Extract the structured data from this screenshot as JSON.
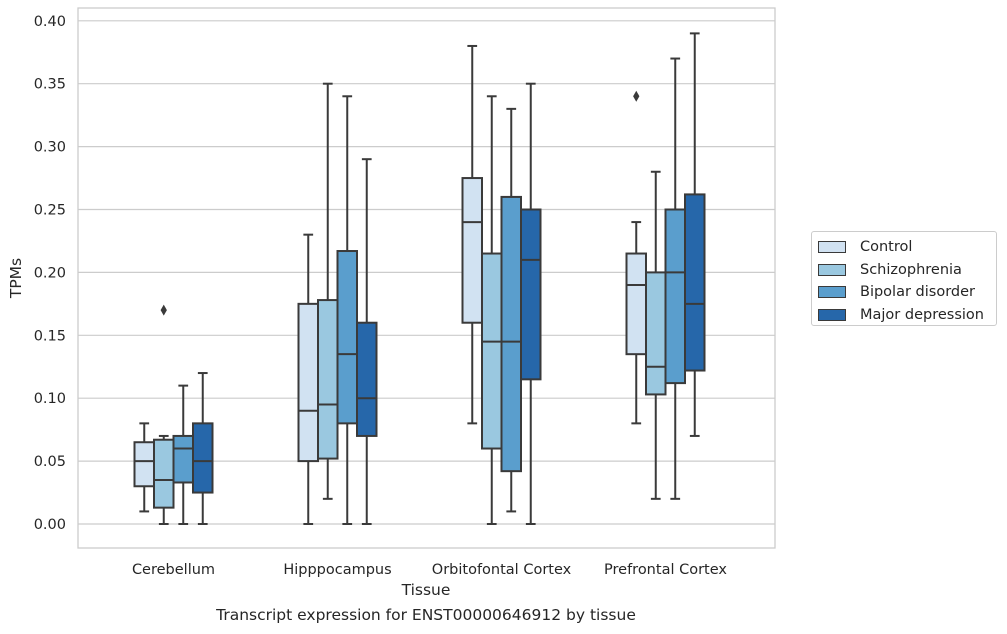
{
  "chart_data": {
    "type": "boxplot",
    "caption": "Transcript expression for ENST00000646912 by tissue",
    "xlabel": "Tissue",
    "ylabel": "TPMs",
    "ylim": [
      -0.018,
      0.41
    ],
    "yticks": [
      0.0,
      0.05,
      0.1,
      0.15,
      0.2,
      0.25,
      0.3,
      0.35,
      0.4
    ],
    "ytick_labels": [
      "0.00",
      "0.05",
      "0.10",
      "0.15",
      "0.20",
      "0.25",
      "0.30",
      "0.35",
      "0.40"
    ],
    "grid": "horizontal",
    "legend_position": "right",
    "categories": [
      "Cerebellum",
      "Hipppocampus",
      "Orbitofontal Cortex",
      "Prefrontal Cortex"
    ],
    "series": [
      {
        "name": "Control",
        "color": "#d1e2f2",
        "boxes": [
          {
            "min": 0.01,
            "q1": 0.03,
            "median": 0.05,
            "q3": 0.065,
            "max": 0.08,
            "outliers": []
          },
          {
            "min": 0.0,
            "q1": 0.05,
            "median": 0.09,
            "q3": 0.175,
            "max": 0.23,
            "outliers": []
          },
          {
            "min": 0.08,
            "q1": 0.16,
            "median": 0.24,
            "q3": 0.275,
            "max": 0.38,
            "outliers": []
          },
          {
            "min": 0.08,
            "q1": 0.135,
            "median": 0.19,
            "q3": 0.215,
            "max": 0.24,
            "outliers": [
              0.34
            ]
          }
        ]
      },
      {
        "name": "Schizophrenia",
        "color": "#9ac8e0",
        "boxes": [
          {
            "min": 0.0,
            "q1": 0.013,
            "median": 0.035,
            "q3": 0.067,
            "max": 0.07,
            "outliers": [
              0.17
            ]
          },
          {
            "min": 0.02,
            "q1": 0.052,
            "median": 0.095,
            "q3": 0.178,
            "max": 0.35,
            "outliers": []
          },
          {
            "min": 0.0,
            "q1": 0.06,
            "median": 0.145,
            "q3": 0.215,
            "max": 0.34,
            "outliers": []
          },
          {
            "min": 0.02,
            "q1": 0.103,
            "median": 0.125,
            "q3": 0.2,
            "max": 0.28,
            "outliers": []
          }
        ]
      },
      {
        "name": "Bipolar disorder",
        "color": "#5a9ecd",
        "boxes": [
          {
            "min": 0.0,
            "q1": 0.033,
            "median": 0.06,
            "q3": 0.07,
            "max": 0.11,
            "outliers": []
          },
          {
            "min": 0.0,
            "q1": 0.08,
            "median": 0.135,
            "q3": 0.217,
            "max": 0.34,
            "outliers": []
          },
          {
            "min": 0.01,
            "q1": 0.042,
            "median": 0.145,
            "q3": 0.26,
            "max": 0.33,
            "outliers": []
          },
          {
            "min": 0.02,
            "q1": 0.112,
            "median": 0.2,
            "q3": 0.25,
            "max": 0.37,
            "outliers": []
          }
        ]
      },
      {
        "name": "Major depression",
        "color": "#2667aa",
        "boxes": [
          {
            "min": 0.0,
            "q1": 0.025,
            "median": 0.05,
            "q3": 0.08,
            "max": 0.12,
            "outliers": []
          },
          {
            "min": 0.0,
            "q1": 0.07,
            "median": 0.1,
            "q3": 0.16,
            "max": 0.29,
            "outliers": []
          },
          {
            "min": 0.0,
            "q1": 0.115,
            "median": 0.21,
            "q3": 0.25,
            "max": 0.35,
            "outliers": []
          },
          {
            "min": 0.07,
            "q1": 0.122,
            "median": 0.175,
            "q3": 0.262,
            "max": 0.39,
            "outliers": []
          }
        ]
      }
    ]
  }
}
